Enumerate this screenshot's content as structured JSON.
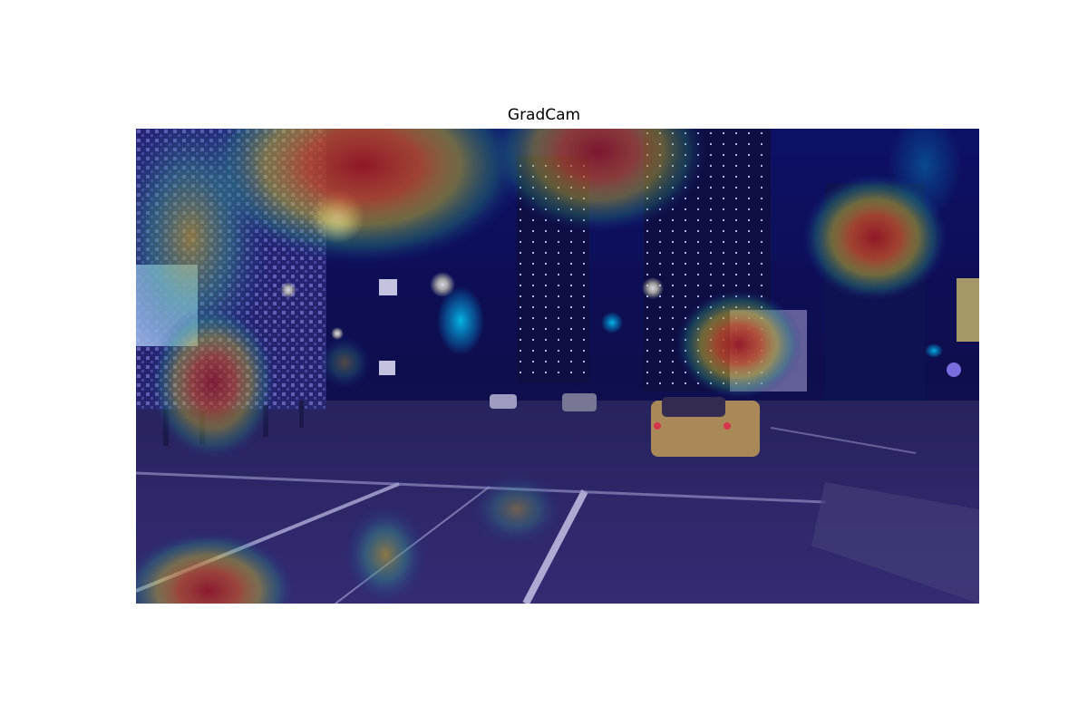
{
  "figure": {
    "title": "GradCam",
    "colormap": "jet",
    "accent_colors": {
      "cold": "#00008b",
      "cool": "#00bcd4",
      "warm": "#ffeb3b",
      "hot": "#d32f2f"
    }
  }
}
